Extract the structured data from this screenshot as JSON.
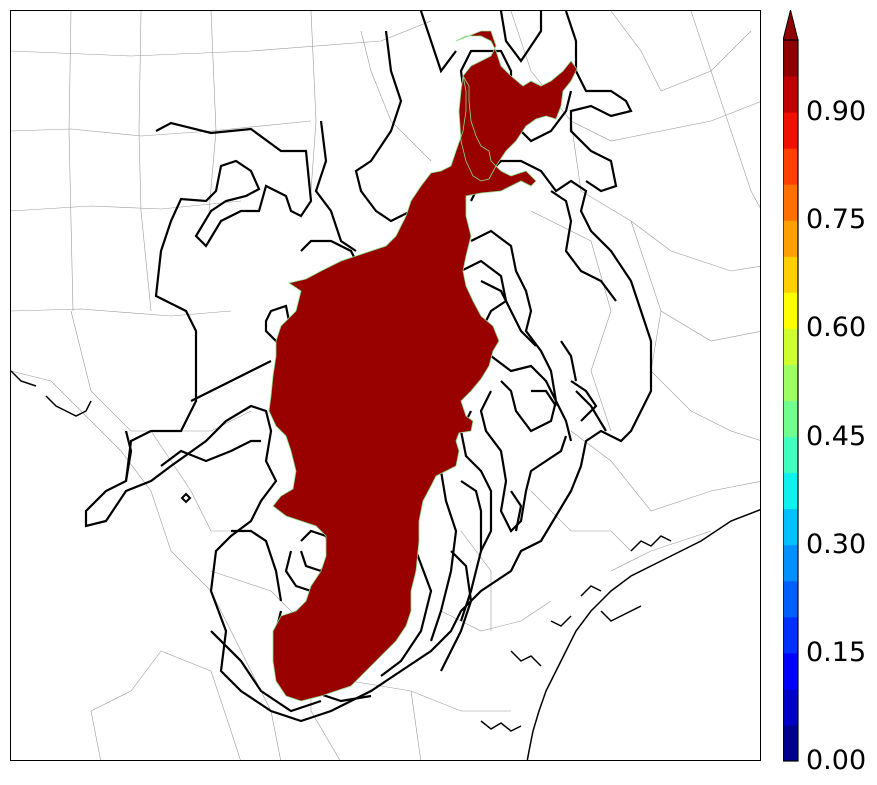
{
  "colorbar": {
    "ticks": [
      "0.00",
      "0.15",
      "0.30",
      "0.45",
      "0.60",
      "0.75",
      "0.90"
    ],
    "extend": "max",
    "colors": [
      "#00008f",
      "#0000c8",
      "#0000ff",
      "#0030ff",
      "#0060ff",
      "#0090ff",
      "#00c0ff",
      "#10f0ef",
      "#40ffbf",
      "#70ff8f",
      "#a0ff60",
      "#d0ff30",
      "#ffff00",
      "#ffd000",
      "#ffa000",
      "#ff7000",
      "#ff4000",
      "#f01000",
      "#c00000",
      "#8f0000"
    ]
  },
  "map": {
    "region_fill_color": "#990000",
    "contour_color": "#000000",
    "county_line_color": "#aaaaaa",
    "coast_color": "#000000"
  }
}
